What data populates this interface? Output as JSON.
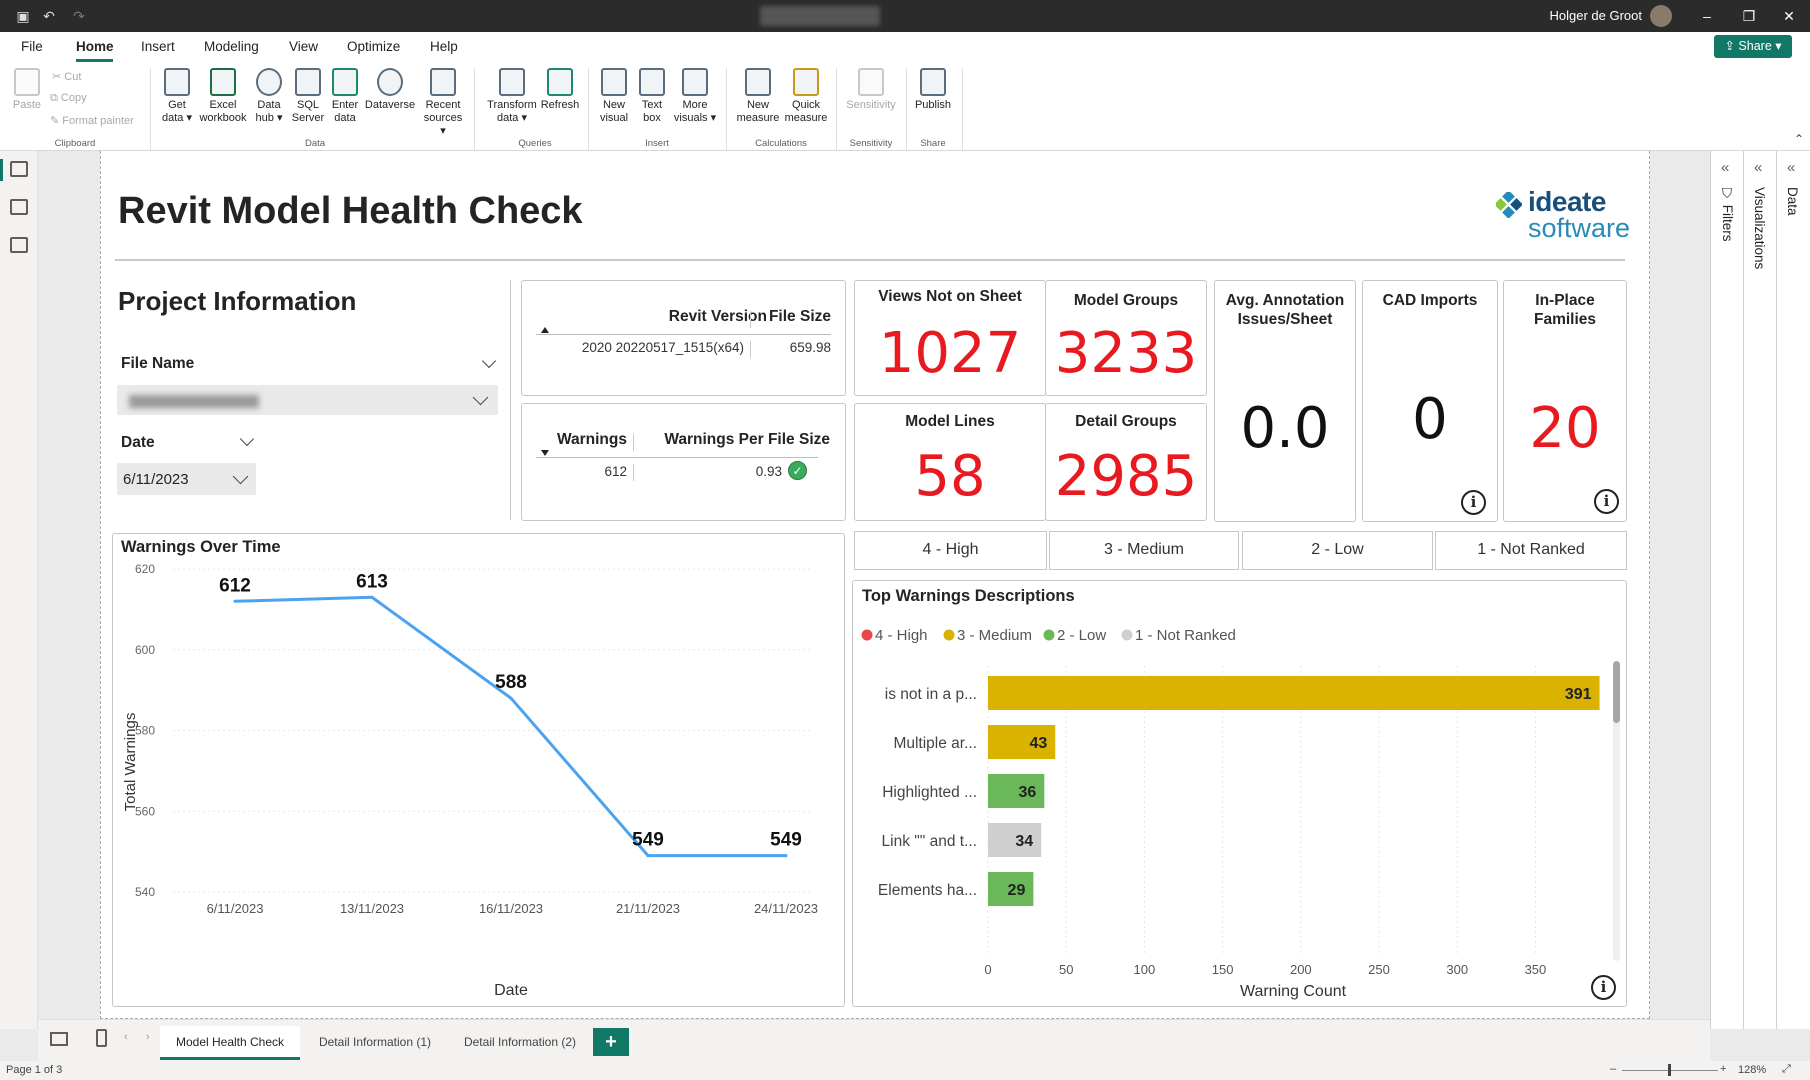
{
  "titlebar": {
    "user": "Holger de Groot"
  },
  "menu": {
    "items": [
      "File",
      "Home",
      "Insert",
      "Modeling",
      "View",
      "Optimize",
      "Help"
    ],
    "share": "Share"
  },
  "ribbon": {
    "clipboard": {
      "paste": "Paste",
      "cut": "Cut",
      "copy": "Copy",
      "format_painter": "Format painter",
      "group": "Clipboard"
    },
    "data": {
      "get_data": "Get data",
      "excel": "Excel workbook",
      "data_hub": "Data hub",
      "sql": "SQL Server",
      "enter": "Enter data",
      "dataverse": "Dataverse",
      "recent": "Recent sources",
      "group": "Data"
    },
    "queries": {
      "transform": "Transform data",
      "refresh": "Refresh",
      "group": "Queries"
    },
    "insert": {
      "new_visual": "New visual",
      "text_box": "Text box",
      "more_visuals": "More visuals",
      "group": "Insert"
    },
    "calculations": {
      "new_measure": "New measure",
      "quick_measure": "Quick measure",
      "group": "Calculations"
    },
    "sensitivity": {
      "label": "Sensitivity",
      "group": "Sensitivity"
    },
    "share": {
      "publish": "Publish",
      "group": "Share"
    }
  },
  "panes": {
    "filters": "Filters",
    "visualizations": "Visualizations",
    "data": "Data"
  },
  "report": {
    "title": "Revit Model Health Check",
    "logo": {
      "line1": "ideate",
      "line2": "software"
    },
    "project_info": {
      "title": "Project Information",
      "file_name_label": "File Name",
      "date_label": "Date",
      "date_value": "6/11/2023"
    },
    "version_table": {
      "col1": "Revit Version",
      "col2": "File Size",
      "val1": "2020 20220517_1515(x64)",
      "val2": "659.98"
    },
    "warnings_table": {
      "col1": "Warnings",
      "col2": "Warnings Per File Size",
      "val1": "612",
      "val2": "0.93"
    },
    "cards": {
      "views_not_on_sheet": {
        "label": "Views Not on Sheet",
        "value": "1027"
      },
      "model_groups": {
        "label": "Model Groups",
        "value": "3233"
      },
      "avg_annotation": {
        "label": "Avg. Annotation Issues/Sheet",
        "value": "0.0"
      },
      "cad_imports": {
        "label": "CAD Imports",
        "value": "0"
      },
      "inplace_families": {
        "label": "In-Place Families",
        "value": "20"
      },
      "model_lines": {
        "label": "Model Lines",
        "value": "58"
      },
      "detail_groups": {
        "label": "Detail Groups",
        "value": "2985"
      }
    },
    "priority_buttons": [
      "4 - High",
      "3 - Medium",
      "2 - Low",
      "1 - Not Ranked"
    ],
    "colors": {
      "high": "#e8474c",
      "medium": "#d9b300",
      "low": "#6ab85a",
      "not_ranked": "#cfcfcf",
      "line": "#4aa3f0",
      "accent": "#117865",
      "value_red": "#e8191f"
    }
  },
  "chart_data": [
    {
      "type": "line",
      "title": "Warnings Over Time",
      "xlabel": "Date",
      "ylabel": "Total Warnings",
      "x": [
        "6/11/2023",
        "13/11/2023",
        "16/11/2023",
        "21/11/2023",
        "24/11/2023"
      ],
      "series": [
        {
          "values": [
            612,
            613,
            588,
            549,
            549
          ]
        }
      ],
      "ylim": [
        540,
        620
      ],
      "yticks": [
        540,
        560,
        580,
        600,
        620
      ],
      "grid": true
    },
    {
      "type": "bar",
      "orientation": "horizontal",
      "title": "Top Warnings Descriptions",
      "xlabel": "Warning Count",
      "legend": [
        {
          "name": "4 - High",
          "color": "#e8474c"
        },
        {
          "name": "3 - Medium",
          "color": "#d9b300"
        },
        {
          "name": "2 - Low",
          "color": "#6ab85a"
        },
        {
          "name": "1 - Not Ranked",
          "color": "#cfcfcf"
        }
      ],
      "legend_position": "top-left",
      "categories": [
        "is not in a p...",
        "Multiple ar...",
        "Highlighted ...",
        "Link \"\" and t...",
        "Elements ha..."
      ],
      "values": [
        391,
        43,
        36,
        34,
        29
      ],
      "priority": [
        "3 - Medium",
        "3 - Medium",
        "2 - Low",
        "1 - Not Ranked",
        "2 - Low"
      ],
      "xlim": [
        0,
        390
      ],
      "xticks": [
        0,
        50,
        100,
        150,
        200,
        250,
        300,
        350
      ],
      "grid": true
    }
  ],
  "footer": {
    "tabs": [
      "Model Health Check",
      "Detail Information (1)",
      "Detail Information (2)"
    ],
    "add": "+"
  },
  "status": {
    "page": "Page 1 of 3",
    "zoom": "128%"
  }
}
